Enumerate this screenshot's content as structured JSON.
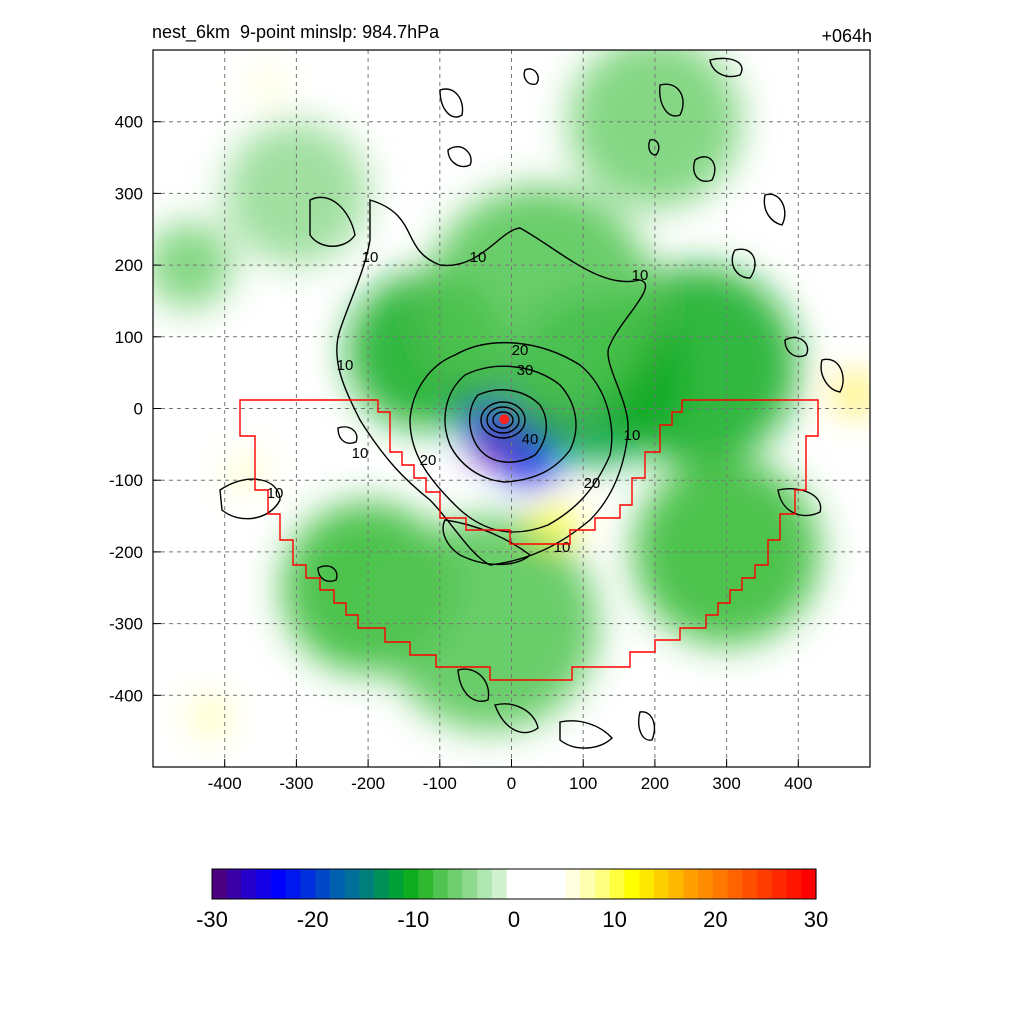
{
  "chart_data": {
    "type": "heatmap",
    "title": "nest_6km  9-point minslp: 984.7hPa",
    "time_label": "+064h",
    "xlim": [
      -500,
      500
    ],
    "ylim": [
      -500,
      500
    ],
    "x_ticks": [
      -400,
      -300,
      -200,
      -100,
      0,
      100,
      200,
      300,
      400
    ],
    "y_ticks": [
      -400,
      -300,
      -200,
      -100,
      0,
      100,
      200,
      300,
      400
    ],
    "grid": true,
    "colorbar": {
      "min": -30,
      "max": 30,
      "ticks": [
        -30,
        -20,
        -10,
        0,
        10,
        20,
        30
      ],
      "colors": [
        "#4b0082",
        "#3a00a8",
        "#2600cc",
        "#1400e6",
        "#0000ff",
        "#0018f0",
        "#0030dd",
        "#0048c8",
        "#0060b0",
        "#00709a",
        "#007f7a",
        "#00905a",
        "#00a038",
        "#10ac20",
        "#30b830",
        "#50c450",
        "#70d070",
        "#90da90",
        "#b0e6b0",
        "#d0f0d0",
        "#ffffff",
        "#ffffff",
        "#ffffff",
        "#ffffff",
        "#ffffe0",
        "#ffffb0",
        "#ffff80",
        "#ffff40",
        "#ffff00",
        "#ffe800",
        "#ffd000",
        "#ffb800",
        "#ffa000",
        "#ff8c00",
        "#ff7800",
        "#ff6400",
        "#ff5000",
        "#ff3c00",
        "#ff2800",
        "#ff1400",
        "#ff0000"
      ]
    },
    "contour_labels": [
      "10",
      "10",
      "10",
      "10",
      "10",
      "10",
      "10",
      "10",
      "20",
      "20",
      "20",
      "30",
      "40"
    ],
    "center_marker": {
      "x": -10,
      "y": -15
    },
    "features": [
      {
        "x": 0,
        "y": -15,
        "value": -28,
        "r": 70
      },
      {
        "x": -30,
        "y": 20,
        "value": -26,
        "r": 55
      },
      {
        "x": 30,
        "y": -80,
        "value": -22,
        "r": 35
      },
      {
        "x": 120,
        "y": 40,
        "value": -12,
        "r": 120
      },
      {
        "x": 260,
        "y": 60,
        "value": -10,
        "r": 140
      },
      {
        "x": -120,
        "y": 80,
        "value": -10,
        "r": 110
      },
      {
        "x": 40,
        "y": 150,
        "value": -8,
        "r": 160
      },
      {
        "x": -200,
        "y": -250,
        "value": -9,
        "r": 120
      },
      {
        "x": 300,
        "y": -200,
        "value": -9,
        "r": 130
      },
      {
        "x": -30,
        "y": -300,
        "value": -7,
        "r": 150
      },
      {
        "x": 200,
        "y": 400,
        "value": -6,
        "r": 120
      },
      {
        "x": -300,
        "y": 300,
        "value": -5,
        "r": 100
      },
      {
        "x": -450,
        "y": 200,
        "value": -6,
        "r": 60
      },
      {
        "x": 60,
        "y": -160,
        "value": 12,
        "r": 30
      },
      {
        "x": 480,
        "y": 20,
        "value": 14,
        "r": 25
      },
      {
        "x": -370,
        "y": -90,
        "value": 9,
        "r": 18
      },
      {
        "x": -420,
        "y": -430,
        "value": 10,
        "r": 18
      },
      {
        "x": -340,
        "y": 450,
        "value": 8,
        "r": 18
      }
    ]
  }
}
